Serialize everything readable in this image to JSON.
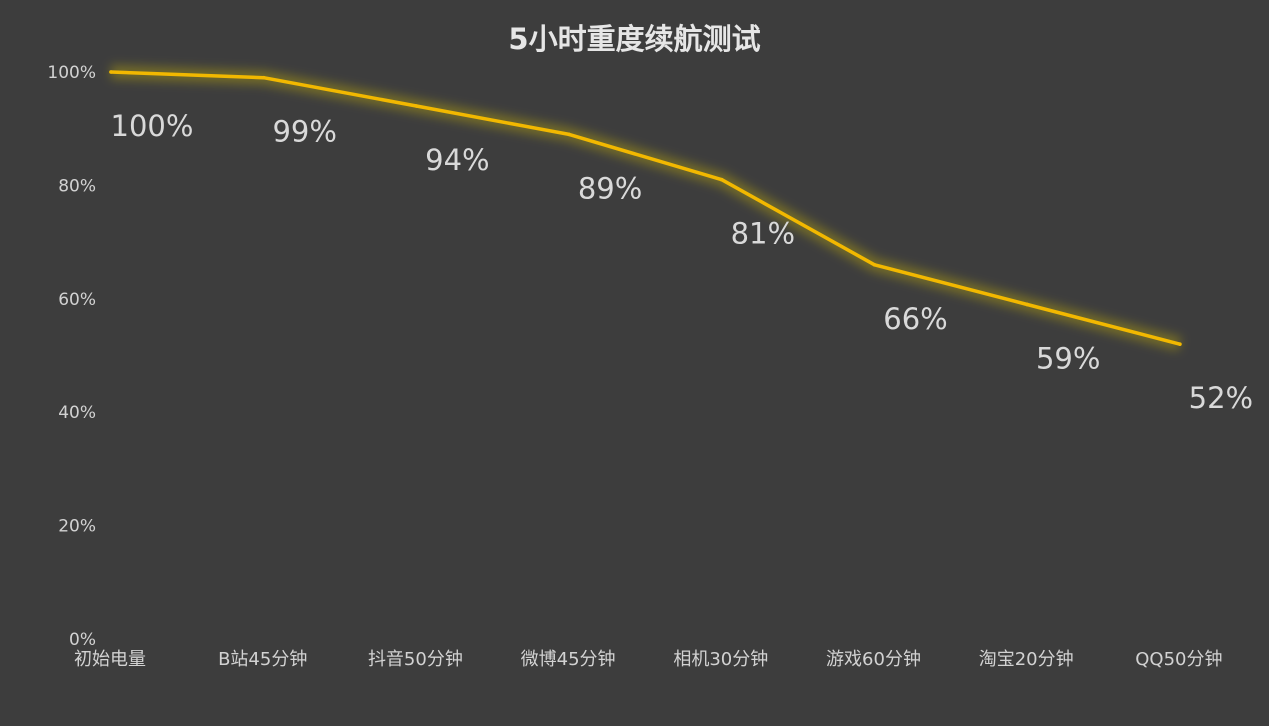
{
  "chart_data": {
    "type": "line",
    "title": "5小时重度续航测试",
    "xlabel": "",
    "ylabel": "",
    "categories": [
      "初始电量",
      "B站45分钟",
      "抖音50分钟",
      "微博45分钟",
      "相机30分钟",
      "游戏60分钟",
      "淘宝20分钟",
      "QQ50分钟"
    ],
    "series": [
      {
        "values": [
          100,
          99,
          94,
          89,
          81,
          66,
          59,
          52
        ]
      }
    ],
    "data_labels": [
      "100%",
      "99%",
      "94%",
      "89%",
      "81%",
      "66%",
      "59%",
      "52%"
    ],
    "y_ticks": [
      0,
      20,
      40,
      60,
      80,
      100
    ],
    "y_tick_labels": [
      "0%",
      "20%",
      "40%",
      "60%",
      "80%",
      "100%"
    ],
    "ylim": [
      0,
      100
    ],
    "grid": false,
    "legend": "none",
    "colors": {
      "background": "#3d3d3d",
      "line": "#f2b800",
      "glow": "#d9c400",
      "text": "#d2d2d2"
    }
  }
}
